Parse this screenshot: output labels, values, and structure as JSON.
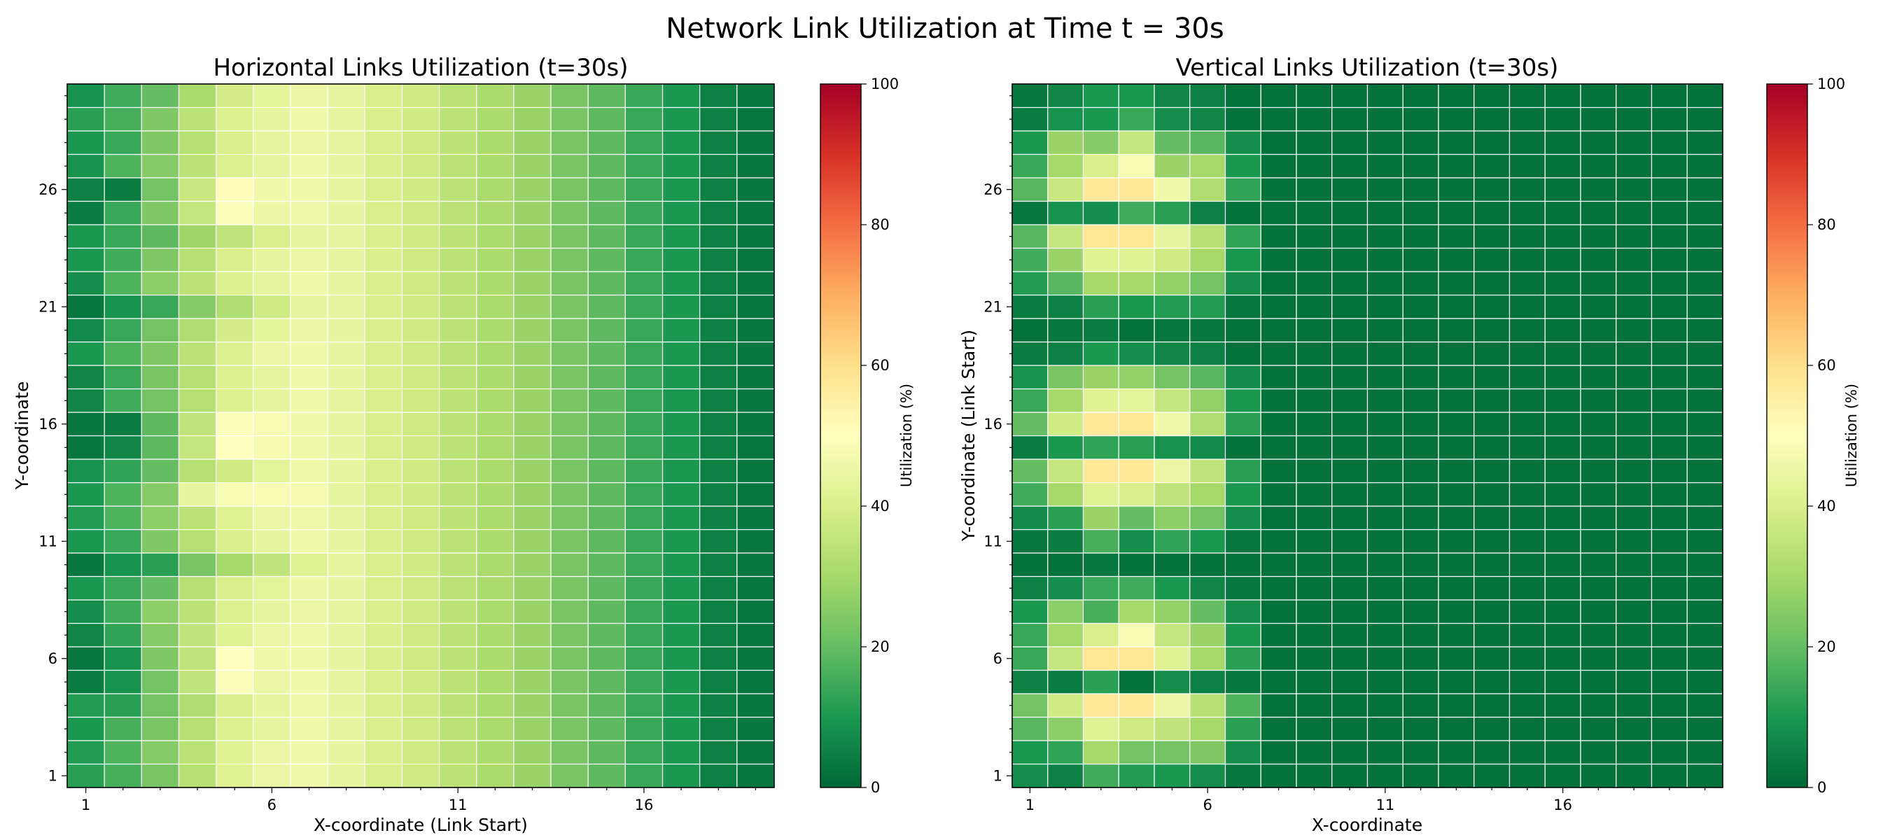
{
  "figure": {
    "title": "Network Link Utilization at Time t = 30s"
  },
  "colors": {
    "colormap": "RdYlGn_r",
    "stops": [
      "#006837",
      "#1a9850",
      "#66bd63",
      "#a6d96a",
      "#d9ef8b",
      "#ffffbf",
      "#fee08b",
      "#fdae61",
      "#f46d43",
      "#d73027",
      "#a50026"
    ],
    "grid": "#ffffff",
    "frame": "#000000"
  },
  "chart_data": [
    {
      "type": "heatmap",
      "title": "Horizontal Links Utilization (t=30s)",
      "xlabel": "X-coordinate (Link Start)",
      "ylabel": "Y-coordinate",
      "colorbar_label": "Utilization (%)",
      "vmin": 0,
      "vmax": 100,
      "colorbar_ticks": [
        0,
        20,
        40,
        60,
        80,
        100
      ],
      "x_ticks": [
        1,
        6,
        11,
        16
      ],
      "y_ticks": [
        1,
        6,
        11,
        16,
        21,
        26
      ],
      "x_range": [
        1,
        19
      ],
      "y_range": [
        1,
        30
      ],
      "grid": true,
      "values": [
        [
          12,
          16,
          23,
          33,
          42,
          45,
          46,
          44,
          40,
          38,
          34,
          31,
          28,
          23,
          19,
          14,
          10,
          5,
          3
        ],
        [
          11,
          17,
          25,
          34,
          42,
          45,
          46,
          44,
          40,
          38,
          34,
          31,
          28,
          23,
          19,
          14,
          10,
          5,
          3
        ],
        [
          10,
          16,
          23,
          33,
          41,
          44,
          46,
          44,
          40,
          38,
          34,
          31,
          28,
          23,
          19,
          14,
          10,
          5,
          3
        ],
        [
          11,
          12,
          22,
          32,
          40,
          44,
          46,
          44,
          40,
          38,
          34,
          31,
          28,
          23,
          19,
          14,
          10,
          5,
          3
        ],
        [
          4,
          9,
          22,
          35,
          49,
          45,
          46,
          44,
          40,
          38,
          34,
          31,
          28,
          23,
          19,
          14,
          10,
          5,
          3
        ],
        [
          3,
          9,
          24,
          35,
          50,
          46,
          46,
          44,
          40,
          38,
          34,
          31,
          28,
          23,
          19,
          14,
          10,
          5,
          3
        ],
        [
          6,
          13,
          25,
          35,
          42,
          45,
          46,
          44,
          40,
          38,
          34,
          31,
          28,
          23,
          19,
          14,
          10,
          5,
          3
        ],
        [
          8,
          15,
          26,
          34,
          41,
          44,
          45,
          44,
          40,
          38,
          34,
          31,
          28,
          23,
          19,
          14,
          10,
          5,
          3
        ],
        [
          10,
          14,
          20,
          33,
          40,
          43,
          45,
          44,
          40,
          38,
          34,
          31,
          28,
          23,
          19,
          14,
          10,
          5,
          3
        ],
        [
          3,
          9,
          12,
          23,
          30,
          35,
          42,
          44,
          40,
          38,
          34,
          31,
          28,
          23,
          19,
          14,
          10,
          5,
          3
        ],
        [
          10,
          14,
          24,
          33,
          40,
          44,
          46,
          44,
          40,
          38,
          34,
          31,
          28,
          23,
          19,
          14,
          10,
          5,
          3
        ],
        [
          11,
          17,
          26,
          34,
          42,
          45,
          46,
          44,
          40,
          38,
          34,
          31,
          28,
          23,
          19,
          14,
          10,
          5,
          3
        ],
        [
          10,
          17,
          25,
          44,
          48,
          48,
          47,
          44,
          40,
          38,
          34,
          31,
          28,
          23,
          19,
          14,
          10,
          5,
          3
        ],
        [
          9,
          13,
          20,
          33,
          38,
          43,
          46,
          44,
          40,
          38,
          34,
          31,
          28,
          23,
          19,
          14,
          10,
          5,
          3
        ],
        [
          3,
          6,
          19,
          36,
          50,
          47,
          46,
          44,
          40,
          38,
          34,
          31,
          28,
          23,
          19,
          14,
          10,
          5,
          3
        ],
        [
          3,
          4,
          19,
          35,
          49,
          48,
          46,
          44,
          40,
          38,
          34,
          31,
          28,
          23,
          19,
          14,
          10,
          5,
          3
        ],
        [
          6,
          15,
          22,
          33,
          41,
          44,
          46,
          44,
          40,
          38,
          34,
          31,
          28,
          23,
          19,
          14,
          10,
          5,
          3
        ],
        [
          6,
          14,
          23,
          33,
          41,
          44,
          46,
          44,
          40,
          38,
          34,
          31,
          28,
          23,
          19,
          14,
          10,
          5,
          3
        ],
        [
          10,
          17,
          24,
          34,
          41,
          45,
          46,
          44,
          40,
          38,
          34,
          31,
          28,
          23,
          19,
          14,
          10,
          5,
          3
        ],
        [
          7,
          14,
          22,
          32,
          39,
          43,
          45,
          44,
          40,
          38,
          34,
          31,
          28,
          23,
          19,
          14,
          10,
          5,
          3
        ],
        [
          3,
          9,
          14,
          25,
          32,
          38,
          44,
          44,
          40,
          38,
          34,
          31,
          28,
          23,
          19,
          14,
          10,
          5,
          3
        ],
        [
          8,
          17,
          26,
          34,
          41,
          44,
          46,
          44,
          40,
          38,
          34,
          31,
          28,
          23,
          19,
          14,
          10,
          5,
          3
        ],
        [
          10,
          15,
          24,
          33,
          40,
          44,
          45,
          44,
          40,
          38,
          34,
          31,
          28,
          23,
          19,
          14,
          10,
          5,
          3
        ],
        [
          10,
          14,
          19,
          29,
          35,
          40,
          44,
          44,
          40,
          38,
          34,
          31,
          28,
          23,
          19,
          14,
          10,
          5,
          3
        ],
        [
          4,
          14,
          24,
          36,
          49,
          45,
          46,
          44,
          40,
          38,
          34,
          31,
          28,
          23,
          19,
          14,
          10,
          5,
          3
        ],
        [
          5,
          4,
          22,
          37,
          51,
          46,
          46,
          44,
          40,
          38,
          34,
          31,
          28,
          23,
          19,
          14,
          10,
          5,
          3
        ],
        [
          9,
          17,
          25,
          34,
          41,
          44,
          46,
          44,
          40,
          38,
          34,
          31,
          28,
          23,
          19,
          14,
          10,
          5,
          3
        ],
        [
          10,
          14,
          24,
          33,
          40,
          44,
          45,
          44,
          40,
          38,
          34,
          31,
          28,
          23,
          19,
          14,
          10,
          5,
          3
        ],
        [
          12,
          16,
          24,
          34,
          41,
          44,
          46,
          44,
          40,
          38,
          34,
          31,
          28,
          23,
          19,
          14,
          10,
          5,
          3
        ],
        [
          9,
          15,
          20,
          31,
          39,
          43,
          45,
          44,
          40,
          38,
          34,
          31,
          28,
          23,
          19,
          14,
          10,
          5,
          3
        ]
      ]
    },
    {
      "type": "heatmap",
      "title": "Vertical Links Utilization (t=30s)",
      "xlabel": "X-coordinate",
      "ylabel": "Y-coordinate (Link Start)",
      "colorbar_label": "Utilization (%)",
      "vmin": 0,
      "vmax": 100,
      "colorbar_ticks": [
        0,
        20,
        40,
        60,
        80,
        100
      ],
      "x_ticks": [
        1,
        6,
        11,
        16
      ],
      "y_ticks": [
        1,
        6,
        11,
        16,
        21,
        26
      ],
      "x_range": [
        1,
        20
      ],
      "y_range": [
        1,
        30
      ],
      "grid": true,
      "values": [
        [
          8,
          5,
          15,
          11,
          10,
          8,
          3,
          2,
          2,
          2,
          2,
          2,
          2,
          2,
          2,
          2,
          2,
          2,
          2,
          2
        ],
        [
          10,
          13,
          30,
          22,
          22,
          24,
          8,
          2,
          2,
          2,
          2,
          2,
          2,
          2,
          2,
          2,
          2,
          2,
          2,
          2
        ],
        [
          18,
          26,
          42,
          38,
          35,
          30,
          12,
          2,
          2,
          2,
          2,
          2,
          2,
          2,
          2,
          2,
          2,
          2,
          2,
          2
        ],
        [
          22,
          38,
          57,
          57,
          45,
          33,
          17,
          2,
          2,
          2,
          2,
          2,
          2,
          2,
          2,
          2,
          2,
          2,
          2,
          2
        ],
        [
          5,
          4,
          12,
          2,
          8,
          5,
          3,
          2,
          2,
          2,
          2,
          2,
          2,
          2,
          2,
          2,
          2,
          2,
          2,
          2
        ],
        [
          14,
          36,
          58,
          58,
          42,
          30,
          12,
          2,
          2,
          2,
          2,
          2,
          2,
          2,
          2,
          2,
          2,
          2,
          2,
          2
        ],
        [
          14,
          30,
          40,
          48,
          36,
          28,
          10,
          2,
          2,
          2,
          2,
          2,
          2,
          2,
          2,
          2,
          2,
          2,
          2,
          2
        ],
        [
          10,
          26,
          16,
          30,
          27,
          20,
          8,
          2,
          2,
          2,
          2,
          2,
          2,
          2,
          2,
          2,
          2,
          2,
          2,
          2
        ],
        [
          5,
          8,
          14,
          15,
          10,
          6,
          3,
          2,
          2,
          2,
          2,
          2,
          2,
          2,
          2,
          2,
          2,
          2,
          2,
          2
        ],
        [
          2,
          2,
          3,
          2,
          2,
          2,
          2,
          2,
          2,
          2,
          2,
          2,
          2,
          2,
          2,
          2,
          2,
          2,
          2,
          2
        ],
        [
          3,
          4,
          16,
          8,
          13,
          10,
          3,
          2,
          2,
          2,
          2,
          2,
          2,
          2,
          2,
          2,
          2,
          2,
          2,
          2
        ],
        [
          7,
          12,
          28,
          20,
          26,
          22,
          8,
          2,
          2,
          2,
          2,
          2,
          2,
          2,
          2,
          2,
          2,
          2,
          2,
          2
        ],
        [
          15,
          30,
          42,
          40,
          35,
          30,
          10,
          2,
          2,
          2,
          2,
          2,
          2,
          2,
          2,
          2,
          2,
          2,
          2,
          2
        ],
        [
          20,
          36,
          57,
          57,
          45,
          35,
          12,
          2,
          2,
          2,
          2,
          2,
          2,
          2,
          2,
          2,
          2,
          2,
          2,
          2
        ],
        [
          4,
          10,
          13,
          12,
          9,
          7,
          2,
          2,
          2,
          2,
          2,
          2,
          2,
          2,
          2,
          2,
          2,
          2,
          2,
          2
        ],
        [
          20,
          38,
          57,
          58,
          46,
          32,
          12,
          2,
          2,
          2,
          2,
          2,
          2,
          2,
          2,
          2,
          2,
          2,
          2,
          2
        ],
        [
          14,
          30,
          42,
          43,
          36,
          27,
          10,
          2,
          2,
          2,
          2,
          2,
          2,
          2,
          2,
          2,
          2,
          2,
          2,
          2
        ],
        [
          9,
          23,
          28,
          27,
          22,
          18,
          7,
          2,
          2,
          2,
          2,
          2,
          2,
          2,
          2,
          2,
          2,
          2,
          2,
          2
        ],
        [
          4,
          5,
          10,
          8,
          6,
          5,
          2,
          2,
          2,
          2,
          2,
          2,
          2,
          2,
          2,
          2,
          2,
          2,
          2,
          2
        ],
        [
          2,
          3,
          4,
          2,
          3,
          3,
          2,
          2,
          2,
          2,
          2,
          2,
          2,
          2,
          2,
          2,
          2,
          2,
          2,
          2
        ],
        [
          4,
          5,
          12,
          10,
          11,
          11,
          3,
          2,
          2,
          2,
          2,
          2,
          2,
          2,
          2,
          2,
          2,
          2,
          2,
          2
        ],
        [
          11,
          18,
          30,
          30,
          27,
          22,
          8,
          2,
          2,
          2,
          2,
          2,
          2,
          2,
          2,
          2,
          2,
          2,
          2,
          2
        ],
        [
          15,
          28,
          42,
          42,
          38,
          30,
          10,
          2,
          2,
          2,
          2,
          2,
          2,
          2,
          2,
          2,
          2,
          2,
          2,
          2
        ],
        [
          18,
          36,
          58,
          58,
          44,
          33,
          13,
          2,
          2,
          2,
          2,
          2,
          2,
          2,
          2,
          2,
          2,
          2,
          2,
          2
        ],
        [
          3,
          9,
          8,
          15,
          12,
          5,
          2,
          2,
          2,
          2,
          2,
          2,
          2,
          2,
          2,
          2,
          2,
          2,
          2,
          2
        ],
        [
          18,
          37,
          57,
          57,
          46,
          32,
          13,
          2,
          2,
          2,
          2,
          2,
          2,
          2,
          2,
          2,
          2,
          2,
          2,
          2
        ],
        [
          14,
          30,
          40,
          48,
          28,
          30,
          10,
          2,
          2,
          2,
          2,
          2,
          2,
          2,
          2,
          2,
          2,
          2,
          2,
          2
        ],
        [
          10,
          28,
          25,
          36,
          20,
          18,
          8,
          2,
          2,
          2,
          2,
          2,
          2,
          2,
          2,
          2,
          2,
          2,
          2,
          2
        ],
        [
          4,
          9,
          10,
          14,
          8,
          6,
          2,
          2,
          2,
          2,
          2,
          2,
          2,
          2,
          2,
          2,
          2,
          2,
          2,
          2
        ],
        [
          3,
          6,
          10,
          10,
          6,
          5,
          2,
          2,
          2,
          2,
          2,
          2,
          2,
          2,
          2,
          2,
          2,
          2,
          2,
          2
        ]
      ]
    }
  ]
}
